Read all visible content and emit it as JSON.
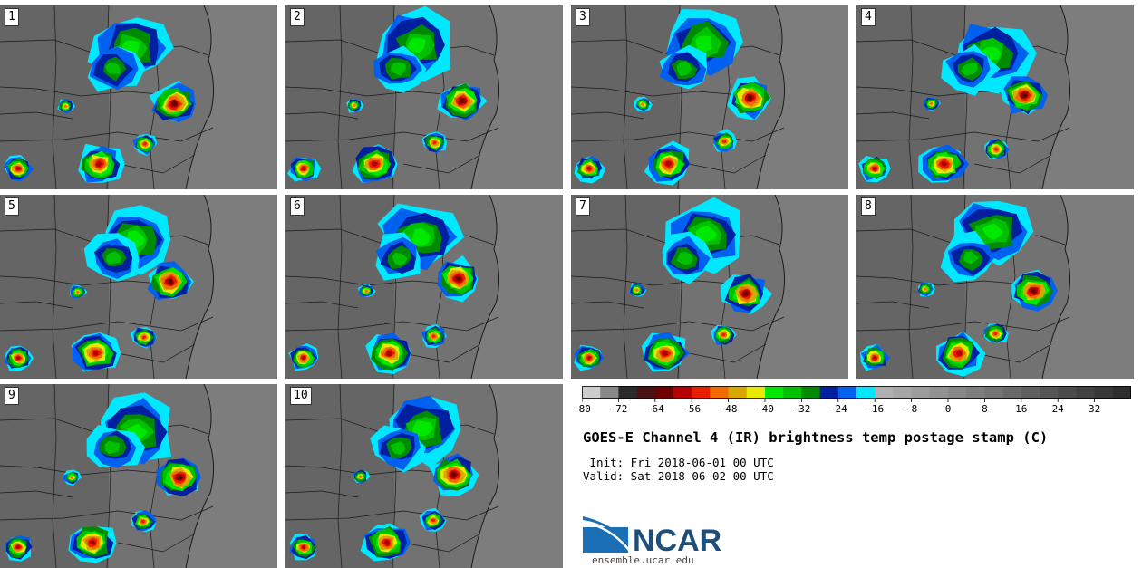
{
  "panels": [
    {
      "label": "1"
    },
    {
      "label": "2"
    },
    {
      "label": "3"
    },
    {
      "label": "4"
    },
    {
      "label": "5"
    },
    {
      "label": "6"
    },
    {
      "label": "7"
    },
    {
      "label": "8"
    },
    {
      "label": "9"
    },
    {
      "label": "10"
    }
  ],
  "colorbar": {
    "ticks": [
      "−80",
      "−72",
      "−64",
      "−56",
      "−48",
      "−40",
      "−32",
      "−24",
      "−16",
      "−8",
      "0",
      "8",
      "16",
      "24",
      "32"
    ],
    "tick_values": [
      -80,
      -72,
      -64,
      -56,
      -48,
      -40,
      -32,
      -24,
      -16,
      -8,
      0,
      8,
      16,
      24,
      32
    ],
    "range": [
      -80,
      40
    ],
    "colors": [
      "#cccccc",
      "#888888",
      "#2a2a2a",
      "#4a1212",
      "#6e0000",
      "#b40000",
      "#e81e00",
      "#f06a00",
      "#d8a800",
      "#e8e800",
      "#00e800",
      "#00c000",
      "#008a00",
      "#0020a0",
      "#0060f0",
      "#00e8ff",
      "#b0b0b0",
      "#a6a6a6",
      "#9c9c9c",
      "#929292",
      "#888888",
      "#7e7e7e",
      "#747474",
      "#6a6a6a",
      "#606060",
      "#565656",
      "#4c4c4c",
      "#424242",
      "#383838",
      "#2e2e2e"
    ]
  },
  "title": "GOES-E Channel 4 (IR) brightness temp postage stamp (C)",
  "init_line": " Init: Fri 2018-06-01 00 UTC",
  "valid_line": "Valid: Sat 2018-06-02 00 UTC",
  "logo_text": "NCAR",
  "website": "ensemble.ucar.edu"
}
